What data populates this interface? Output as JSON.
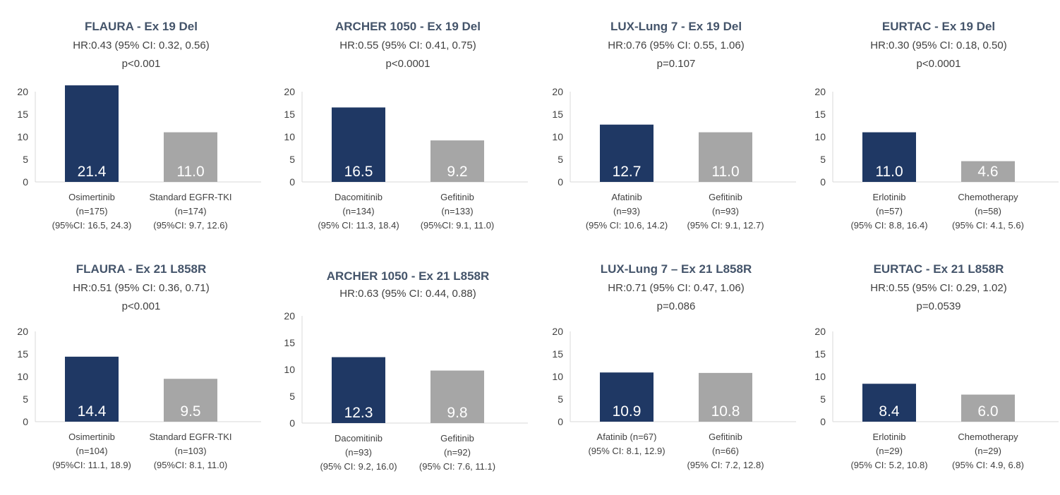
{
  "chart_data": [
    {
      "type": "bar",
      "title": "FLAURA - Ex 19 Del",
      "hr": "HR:0.43 (95% CI: 0.32, 0.56)",
      "p": "p<0.001",
      "ylim": [
        0,
        20
      ],
      "yticks": [
        "0",
        "5",
        "10",
        "15",
        "20"
      ],
      "categories": [
        {
          "name": "Osimertinib",
          "n": "(n=175)",
          "ci": "(95%CI: 16.5, 24.3)"
        },
        {
          "name": "Standard EGFR-TKI",
          "n": "(n=174)",
          "ci": "(95%CI: 9.7, 12.6)"
        }
      ],
      "values": [
        21.4,
        11.0
      ],
      "value_labels": [
        "21.4",
        "11.0"
      ]
    },
    {
      "type": "bar",
      "title": "ARCHER 1050 - Ex 19 Del",
      "hr": "HR:0.55 (95% CI: 0.41, 0.75)",
      "p": "p<0.0001",
      "ylim": [
        0,
        20
      ],
      "yticks": [
        "0",
        "5",
        "10",
        "15",
        "20"
      ],
      "categories": [
        {
          "name": "Dacomitinib",
          "n": "(n=134)",
          "ci": "(95% CI: 11.3, 18.4)"
        },
        {
          "name": "Gefitinib",
          "n": "(n=133)",
          "ci": "(95%CI: 9.1, 11.0)"
        }
      ],
      "values": [
        16.5,
        9.2
      ],
      "value_labels": [
        "16.5",
        "9.2"
      ]
    },
    {
      "type": "bar",
      "title": "LUX-Lung 7 - Ex 19 Del",
      "hr": "HR:0.76 (95% CI: 0.55, 1.06)",
      "p": "p=0.107",
      "ylim": [
        0,
        20
      ],
      "yticks": [
        "0",
        "5",
        "10",
        "15",
        "20"
      ],
      "categories": [
        {
          "name": "Afatinib",
          "n": "(n=93)",
          "ci": "(95% CI: 10.6, 14.2)"
        },
        {
          "name": "Gefitinib",
          "n": "(n=93)",
          "ci": "(95% CI: 9.1, 12.7)"
        }
      ],
      "values": [
        12.7,
        11.0
      ],
      "value_labels": [
        "12.7",
        "11.0"
      ]
    },
    {
      "type": "bar",
      "title": "EURTAC - Ex 19 Del",
      "hr": "HR:0.30 (95% CI: 0.18, 0.50)",
      "p": "p<0.0001",
      "ylim": [
        0,
        20
      ],
      "yticks": [
        "0",
        "5",
        "10",
        "15",
        "20"
      ],
      "categories": [
        {
          "name": "Erlotinib",
          "n": "(n=57)",
          "ci": "(95% CI: 8.8, 16.4)"
        },
        {
          "name": "Chemotherapy",
          "n": "(n=58)",
          "ci": "(95% CI: 4.1, 5.6)"
        }
      ],
      "values": [
        11.0,
        4.6
      ],
      "value_labels": [
        "11.0",
        "4.6"
      ]
    },
    {
      "type": "bar",
      "title": "FLAURA - Ex 21 L858R",
      "hr": "HR:0.51 (95% CI: 0.36, 0.71)",
      "p": "p<0.001",
      "ylim": [
        0,
        20
      ],
      "yticks": [
        "0",
        "5",
        "10",
        "15",
        "20"
      ],
      "categories": [
        {
          "name": "Osimertinib",
          "n": "(n=104)",
          "ci": "(95%CI: 11.1, 18.9)"
        },
        {
          "name": "Standard EGFR-TKI",
          "n": "(n=103)",
          "ci": "(95%CI: 8.1, 11.0)"
        }
      ],
      "values": [
        14.4,
        9.5
      ],
      "value_labels": [
        "14.4",
        "9.5"
      ]
    },
    {
      "type": "bar",
      "title": "ARCHER 1050 - Ex 21 L858R",
      "hr": "HR:0.63 (95% CI: 0.44, 0.88)",
      "p": "",
      "ylim": [
        0,
        20
      ],
      "yticks": [
        "0",
        "5",
        "10",
        "15",
        "20"
      ],
      "categories": [
        {
          "name": "Dacomitinib",
          "n": "(n=93)",
          "ci": "(95% CI: 9.2, 16.0)"
        },
        {
          "name": "Gefitinib",
          "n": "(n=92)",
          "ci": "(95% CI: 7.6, 11.1)"
        }
      ],
      "values": [
        12.3,
        9.8
      ],
      "value_labels": [
        "12.3",
        "9.8"
      ]
    },
    {
      "type": "bar",
      "title": "LUX-Lung 7 – Ex 21 L858R",
      "hr": "HR:0.71 (95% CI: 0.47, 1.06)",
      "p": "p=0.086",
      "ylim": [
        0,
        20
      ],
      "yticks": [
        "0",
        "5",
        "10",
        "15",
        "20"
      ],
      "categories": [
        {
          "name": "Afatinib (n=67)",
          "n": "",
          "ci": "(95% CI: 8.1, 12.9)"
        },
        {
          "name": "Gefitinib",
          "n": "(n=66)",
          "ci": "(95% CI: 7.2, 12.8)"
        }
      ],
      "values": [
        10.9,
        10.8
      ],
      "value_labels": [
        "10.9",
        "10.8"
      ]
    },
    {
      "type": "bar",
      "title": "EURTAC - Ex 21 L858R",
      "hr": "HR:0.55 (95% CI: 0.29, 1.02)",
      "p": "p=0.0539",
      "ylim": [
        0,
        20
      ],
      "yticks": [
        "0",
        "5",
        "10",
        "15",
        "20"
      ],
      "categories": [
        {
          "name": "Erlotinib",
          "n": "(n=29)",
          "ci": "(95% CI: 5.2, 10.8)"
        },
        {
          "name": "Chemotherapy",
          "n": "(n=29)",
          "ci": "(95% CI: 4.9, 6.8)"
        }
      ],
      "values": [
        8.4,
        6.0
      ],
      "value_labels": [
        "8.4",
        "6.0"
      ]
    }
  ],
  "colors": {
    "experimental_bar": "#1f3864",
    "control_bar": "#a6a6a6",
    "axis": "#d9d9d9",
    "title": "#44546a",
    "text": "#404040"
  }
}
